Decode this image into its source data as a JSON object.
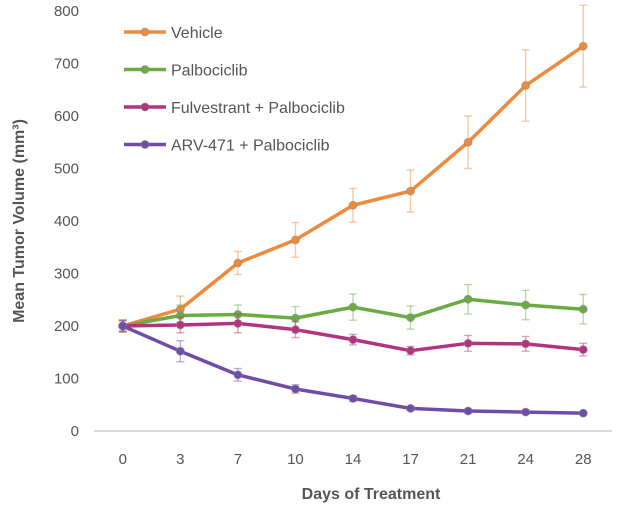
{
  "chart_data": {
    "type": "line",
    "title": "",
    "xlabel": "Days of Treatment",
    "ylabel": "Mean Tumor Volume (mm³)",
    "categories": [
      "0",
      "3",
      "7",
      "10",
      "14",
      "17",
      "21",
      "24",
      "28"
    ],
    "ylim": [
      0,
      800
    ],
    "yticks": [
      0,
      100,
      200,
      300,
      400,
      500,
      600,
      700,
      800
    ],
    "grid": false,
    "legend_position": "top-left",
    "series": [
      {
        "name": "Vehicle",
        "color": "#EE8A3C",
        "values": [
          200,
          232,
          320,
          364,
          430,
          457,
          550,
          658,
          733
        ],
        "errors": [
          12,
          25,
          22,
          33,
          32,
          40,
          50,
          68,
          78
        ]
      },
      {
        "name": "Palbociclib",
        "color": "#6AAB43",
        "values": [
          200,
          220,
          222,
          215,
          236,
          216,
          251,
          240,
          232
        ],
        "errors": [
          12,
          20,
          18,
          22,
          25,
          22,
          28,
          28,
          28
        ]
      },
      {
        "name": "Fulvestrant + Palbociclib",
        "color": "#B2347E",
        "values": [
          200,
          202,
          205,
          193,
          174,
          153,
          167,
          166,
          155
        ],
        "errors": [
          10,
          15,
          18,
          15,
          10,
          8,
          15,
          14,
          12
        ]
      },
      {
        "name": "ARV-471 + Palbociclib",
        "color": "#6F4CA5",
        "values": [
          200,
          152,
          107,
          80,
          62,
          43,
          38,
          36,
          34
        ],
        "errors": [
          10,
          20,
          12,
          8,
          5,
          4,
          4,
          4,
          3
        ]
      }
    ]
  }
}
